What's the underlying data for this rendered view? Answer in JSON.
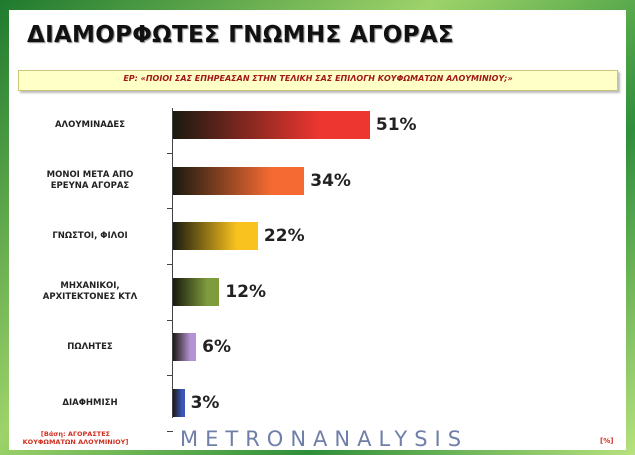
{
  "chart_data": {
    "type": "bar",
    "title": "ΔΙΑΜΟΡΦΩΤΕΣ ΓΝΩΜΗΣ ΑΓΟΡΑΣ",
    "subtitle": "ΕΡ: «ΠΟΙΟΙ ΣΑΣ ΕΠΗΡΕΑΣΑΝ ΣΤΗΝ ΤΕΛΙΚΗ ΣΑΣ ΕΠΙΛΟΓΗ ΚΟΥΦΩΜΑΤΩΝ ΑΛΟΥΜΙΝΙΟΥ;»",
    "categories": [
      "ΑΛΟΥΜΙΝΑΔΕΣ",
      "ΜΟΝΟΙ ΜΕΤΑ ΑΠΟ\nΕΡΕΥΝΑ ΑΓΟΡΑΣ",
      "ΓΝΩΣΤΟΙ, ΦΙΛΟΙ",
      "ΜΗΧΑΝΙΚΟΙ,\nΑΡΧΙΤΕΚΤΟΝΕΣ ΚΤΛ",
      "ΠΩΛΗΤΕΣ",
      "ΔΙΑΦΗΜΙΣΗ"
    ],
    "values": [
      51,
      34,
      22,
      12,
      6,
      3
    ],
    "value_labels": [
      "51%",
      "34%",
      "22%",
      "12%",
      "6%",
      "3%"
    ],
    "colors": [
      "#ee3630",
      "#f46a32",
      "#f9c21e",
      "#7f9c3c",
      "#b592d3",
      "#3d55b8"
    ],
    "base_note": "[Βάση: ΑΓΟΡΑΣΤΕΣ\nΚΟΥΦΩΜΑΤΩΝ ΑΛΟΥΜΙΝΙΟΥ]",
    "logo": "METRONANALYSIS",
    "unit_note": "[%]"
  }
}
